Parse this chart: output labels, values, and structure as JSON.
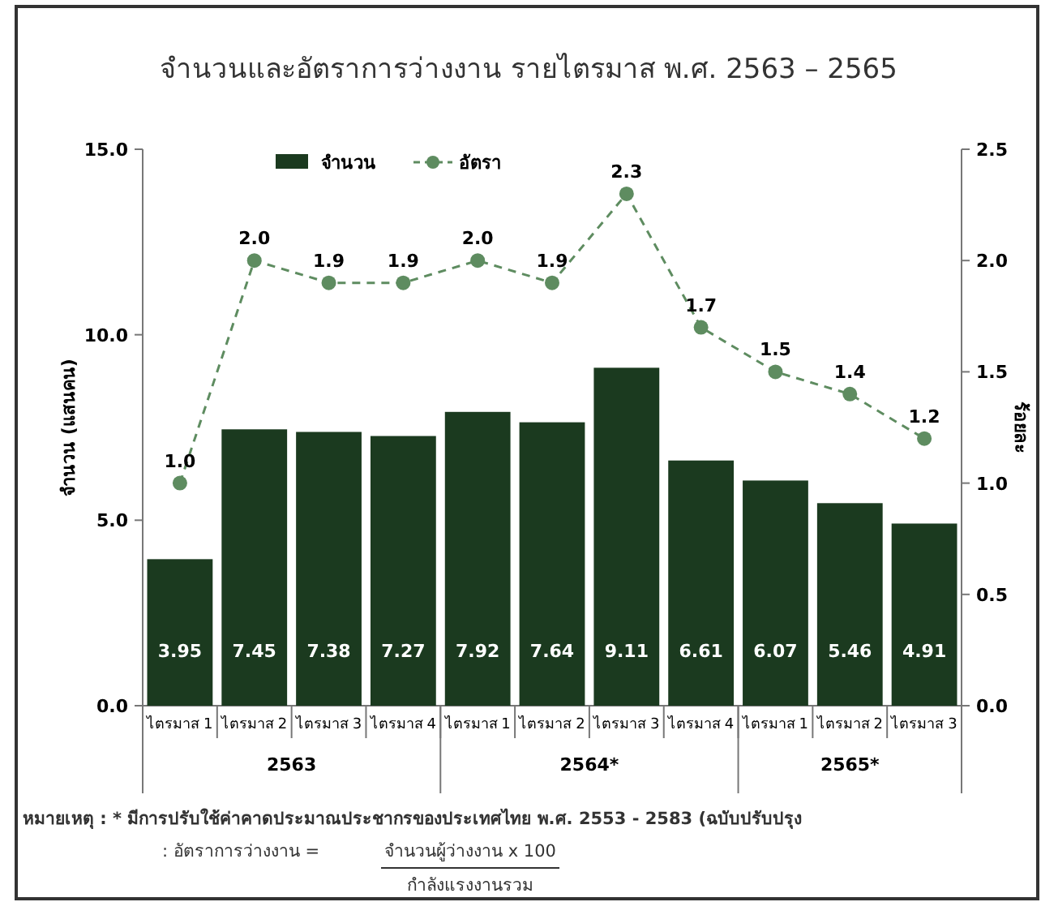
{
  "chart_data": {
    "type": "bar",
    "title": "จำนวนและอัตราการว่างงาน รายไตรมาส พ.ศ. 2563 – 2565",
    "ylabel": "จำนวน (แสนคน)",
    "y2label": "ร้อยละ",
    "categories": [
      "ไตรมาส 1",
      "ไตรมาส 2",
      "ไตรมาส 3",
      "ไตรมาส 4",
      "ไตรมาส 1",
      "ไตรมาส 2",
      "ไตรมาส 3",
      "ไตรมาส 4",
      "ไตรมาส 1",
      "ไตรมาส 2",
      "ไตรมาส 3"
    ],
    "series": [
      {
        "name": "จำนวน",
        "color": "#1b3a1f",
        "values": [
          3.95,
          7.45,
          7.38,
          7.27,
          7.92,
          7.64,
          9.11,
          6.61,
          6.07,
          5.46,
          4.91
        ]
      },
      {
        "name": "อัตรา",
        "type": "line",
        "axis": "y2",
        "color": "#5e8c60",
        "marker": "circle",
        "line_style": "dashed",
        "values": [
          1.0,
          2.0,
          1.9,
          1.9,
          2.0,
          1.9,
          2.3,
          1.7,
          1.5,
          1.4,
          1.2
        ],
        "value_labels": [
          "1.0",
          "2.0",
          "1.9",
          "1.9",
          "2.0",
          "1.9",
          "2.3",
          "1.7",
          "1.5",
          "1.4",
          "1.2"
        ]
      }
    ],
    "ylim": [
      0,
      15
    ],
    "yticks": [
      {
        "value": 0,
        "label": "0.0"
      },
      {
        "value": 5,
        "label": "5.0"
      },
      {
        "value": 10,
        "label": "10.0"
      },
      {
        "value": 15,
        "label": "15.0"
      }
    ],
    "y2lim": [
      0,
      2.5
    ],
    "y2ticks": [
      {
        "value": 0,
        "label": "0.0"
      },
      {
        "value": 0.5,
        "label": "0.5"
      },
      {
        "value": 1,
        "label": "1.0"
      },
      {
        "value": 1.5,
        "label": "1.5"
      },
      {
        "value": 2,
        "label": "2.0"
      },
      {
        "value": 2.5,
        "label": "2.5"
      }
    ],
    "data_labels": true,
    "legend": "top left",
    "grid": false,
    "annotations": [
      "2563",
      "2564*",
      "2565*",
      "หมายเหตุ : * มีการปรับใช้ค่าคาดประมาณประชากรของประเทศไทย พ.ศ. 2553 - 2583 (ฉบับปรับปรุง",
      ": อัตราการว่างงาน =",
      "จำนวนผู้ว่างงาน x 100",
      "กำลังแรงงานรวม"
    ]
  }
}
